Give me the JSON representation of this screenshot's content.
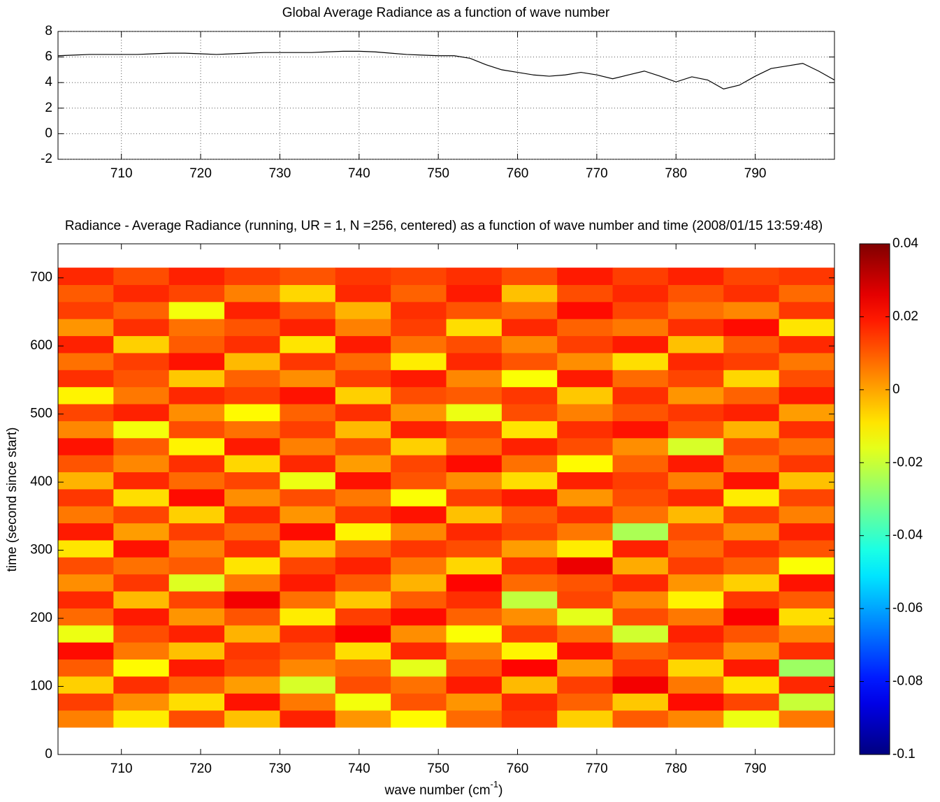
{
  "chart_data": [
    {
      "type": "line",
      "title": "Global Average Radiance as a function of wave number",
      "x": [
        702,
        704,
        706,
        708,
        710,
        712,
        714,
        716,
        718,
        720,
        722,
        724,
        726,
        728,
        730,
        732,
        734,
        736,
        738,
        740,
        742,
        744,
        746,
        748,
        750,
        752,
        754,
        756,
        758,
        760,
        762,
        764,
        766,
        768,
        770,
        772,
        774,
        776,
        778,
        780,
        782,
        784,
        786,
        788,
        790,
        792,
        794,
        796,
        798,
        800
      ],
      "series": [
        {
          "color": "#000000",
          "values": [
            6.1,
            6.15,
            6.2,
            6.2,
            6.2,
            6.2,
            6.25,
            6.3,
            6.3,
            6.25,
            6.2,
            6.25,
            6.3,
            6.35,
            6.35,
            6.35,
            6.35,
            6.4,
            6.45,
            6.45,
            6.4,
            6.3,
            6.2,
            6.15,
            6.1,
            6.1,
            5.9,
            5.4,
            5.0,
            4.8,
            4.6,
            4.5,
            4.6,
            4.8,
            4.6,
            4.3,
            4.6,
            4.9,
            4.5,
            4.05,
            4.45,
            4.2,
            3.5,
            3.8,
            4.5,
            5.1,
            5.3,
            5.5,
            4.9,
            4.2
          ]
        }
      ],
      "xlim": [
        702,
        800
      ],
      "xticks": [
        710,
        720,
        730,
        740,
        750,
        760,
        770,
        780,
        790
      ],
      "ylim": [
        -2,
        8
      ],
      "yticks": [
        -2,
        0,
        2,
        4,
        6,
        8
      ],
      "grid": true
    },
    {
      "type": "heatmap",
      "title": "Radiance - Average Radiance (running, UR = 1, N =256, centered) as a function of wave number and time (2008/01/15 13:59:48)",
      "xlabel_parts": [
        "wave number (cm",
        "-1",
        ")"
      ],
      "ylabel": "time (second since start)",
      "xlim": [
        702,
        800
      ],
      "xticks": [
        710,
        720,
        730,
        740,
        750,
        760,
        770,
        780,
        790
      ],
      "ylim": [
        0,
        750
      ],
      "yticks": [
        0,
        100,
        200,
        300,
        400,
        500,
        600,
        700
      ],
      "colormap": "jet",
      "clim": [
        -0.1,
        0.04
      ],
      "cticks": [
        -0.1,
        -0.08,
        -0.06,
        -0.04,
        -0.02,
        0,
        0.02,
        0.04
      ],
      "xbins": [
        702,
        709,
        716,
        723,
        730,
        737,
        744,
        751,
        758,
        765,
        772,
        779,
        786,
        793,
        800
      ],
      "ybins": [
        40,
        65,
        90,
        115,
        140,
        165,
        190,
        215,
        240,
        265,
        290,
        315,
        340,
        365,
        390,
        415,
        440,
        465,
        490,
        515,
        540,
        565,
        590,
        615,
        640,
        665,
        690,
        715
      ],
      "z": [
        [
          0.005,
          -0.01,
          0.012,
          -0.004,
          0.018,
          0.002,
          -0.012,
          0.008,
          0.015,
          -0.006,
          0.01,
          0.004,
          -0.015,
          0.006
        ],
        [
          0.014,
          0.003,
          -0.008,
          0.02,
          0.006,
          -0.014,
          0.011,
          0.002,
          0.017,
          0.009,
          -0.005,
          0.021,
          0.013,
          -0.02
        ],
        [
          -0.006,
          0.016,
          0.009,
          0.001,
          -0.018,
          0.012,
          0.007,
          0.019,
          -0.003,
          0.014,
          0.024,
          0.006,
          -0.009,
          0.017
        ],
        [
          0.01,
          -0.012,
          0.019,
          0.013,
          0.004,
          0.008,
          -0.016,
          0.011,
          0.022,
          0.001,
          0.015,
          -0.007,
          0.019,
          -0.026
        ],
        [
          0.021,
          0.006,
          -0.004,
          0.015,
          0.011,
          -0.008,
          0.017,
          0.005,
          -0.011,
          0.02,
          0.009,
          0.013,
          0.002,
          0.016
        ],
        [
          -0.015,
          0.012,
          0.018,
          -0.002,
          0.016,
          0.023,
          0.003,
          -0.013,
          0.014,
          0.007,
          -0.019,
          0.018,
          0.011,
          0.004
        ],
        [
          0.008,
          0.019,
          0.002,
          0.011,
          -0.01,
          0.014,
          0.021,
          0.009,
          0.003,
          -0.016,
          0.012,
          0.006,
          0.023,
          -0.008
        ],
        [
          0.017,
          -0.003,
          0.013,
          0.024,
          0.007,
          -0.005,
          0.01,
          0.016,
          -0.021,
          0.013,
          0.004,
          -0.011,
          0.015,
          0.01
        ],
        [
          0.003,
          0.015,
          -0.017,
          0.006,
          0.019,
          0.01,
          -0.002,
          0.022,
          0.008,
          0.011,
          0.017,
          0.002,
          -0.006,
          0.02
        ],
        [
          0.012,
          0.007,
          0.01,
          -0.009,
          0.013,
          0.018,
          0.006,
          -0.007,
          0.016,
          0.025,
          -0.001,
          0.014,
          0.009,
          -0.013
        ],
        [
          -0.009,
          0.02,
          0.005,
          0.016,
          -0.004,
          0.009,
          0.015,
          0.012,
          0.001,
          -0.01,
          0.018,
          0.008,
          0.016,
          0.011
        ],
        [
          0.019,
          0.001,
          0.014,
          0.008,
          0.021,
          -0.011,
          0.004,
          0.017,
          0.013,
          0.006,
          -0.024,
          0.012,
          0.003,
          0.018
        ],
        [
          0.006,
          0.013,
          -0.006,
          0.017,
          0.002,
          0.015,
          0.02,
          -0.004,
          0.01,
          0.016,
          0.007,
          -0.003,
          0.014,
          0.005
        ],
        [
          0.015,
          -0.008,
          0.021,
          0.003,
          0.012,
          0.006,
          -0.013,
          0.014,
          0.019,
          0.002,
          0.012,
          0.017,
          -0.01,
          0.013
        ],
        [
          -0.002,
          0.017,
          0.008,
          0.013,
          -0.015,
          0.02,
          0.011,
          0.003,
          -0.008,
          0.018,
          0.014,
          0.005,
          0.02,
          -0.004
        ],
        [
          0.011,
          0.004,
          0.016,
          -0.007,
          0.017,
          0.001,
          0.013,
          0.021,
          0.007,
          -0.012,
          0.009,
          0.019,
          0.006,
          0.015
        ],
        [
          0.02,
          0.01,
          -0.011,
          0.019,
          0.005,
          0.012,
          -0.006,
          0.008,
          0.018,
          0.012,
          0.003,
          -0.018,
          0.012,
          0.007
        ],
        [
          0.004,
          -0.014,
          0.012,
          0.007,
          0.014,
          -0.003,
          0.018,
          0.013,
          -0.009,
          0.016,
          0.02,
          0.01,
          -0.002,
          0.016
        ],
        [
          0.013,
          0.018,
          0.003,
          -0.012,
          0.009,
          0.016,
          0.002,
          -0.015,
          0.012,
          0.005,
          0.011,
          0.015,
          0.018,
          0.001
        ],
        [
          -0.011,
          0.006,
          0.017,
          0.014,
          0.02,
          -0.006,
          0.012,
          0.01,
          0.015,
          -0.005,
          0.016,
          0.002,
          0.009,
          0.019
        ],
        [
          0.016,
          0.011,
          -0.005,
          0.009,
          0.003,
          0.014,
          0.019,
          0.004,
          -0.013,
          0.019,
          0.008,
          0.013,
          -0.007,
          0.012
        ],
        [
          0.007,
          0.014,
          0.02,
          -0.003,
          0.015,
          0.008,
          -0.01,
          0.017,
          0.011,
          0.003,
          -0.008,
          0.017,
          0.014,
          0.006
        ],
        [
          0.018,
          -0.006,
          0.01,
          0.016,
          -0.009,
          0.019,
          0.007,
          0.012,
          0.004,
          0.014,
          0.019,
          -0.004,
          0.01,
          0.017
        ],
        [
          0.002,
          0.016,
          0.007,
          0.011,
          0.018,
          0.005,
          0.014,
          -0.008,
          0.017,
          0.009,
          0.006,
          0.016,
          0.021,
          -0.009
        ],
        [
          0.014,
          0.009,
          -0.014,
          0.018,
          0.01,
          -0.002,
          0.016,
          0.011,
          0.008,
          0.021,
          0.013,
          0.007,
          0.004,
          0.015
        ],
        [
          0.01,
          0.017,
          0.013,
          0.005,
          -0.007,
          0.017,
          0.009,
          0.019,
          -0.004,
          0.012,
          0.017,
          0.011,
          0.016,
          0.008
        ],
        [
          0.017,
          0.012,
          0.018,
          0.014,
          0.011,
          0.015,
          0.013,
          0.016,
          0.012,
          0.019,
          0.014,
          0.018,
          0.013,
          0.015
        ]
      ]
    }
  ]
}
